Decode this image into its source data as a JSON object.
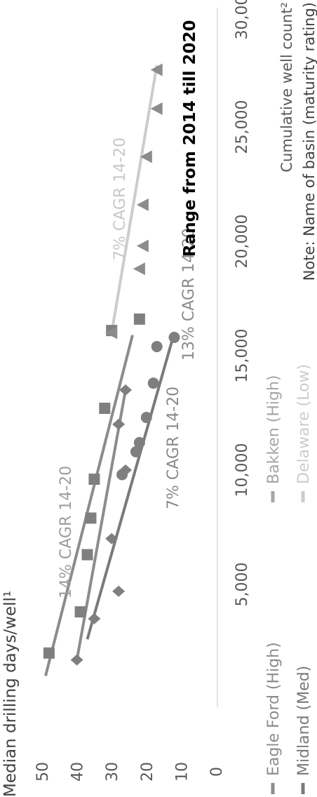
{
  "chart_data": {
    "type": "scatter",
    "title": "",
    "ylabel": "Median drilling days/well¹",
    "xlabel": "Cumulative well count²",
    "xlim": [
      0,
      30000
    ],
    "ylim": [
      0,
      50
    ],
    "x_ticks": [
      "5,000",
      "10,000",
      "15,000",
      "20,000",
      "25,000",
      "30,000"
    ],
    "x_tick_values": [
      5000,
      10000,
      15000,
      20000,
      25000,
      30000
    ],
    "y_ticks": [
      "0",
      "10",
      "20",
      "30",
      "40",
      "50"
    ],
    "y_tick_values": [
      0,
      10,
      20,
      30,
      40,
      50
    ],
    "orientation": "rotated 90° counter-clockwise",
    "legend": [
      {
        "label": "Eagle Ford (High)",
        "color": "#8c8c8c"
      },
      {
        "label": "Bakken (High)",
        "color": "#a6a6a6"
      },
      {
        "label": "Midland (Med)",
        "color": "#7a7a7a"
      },
      {
        "label": "Delaware (Low)",
        "color": "#cccccc"
      }
    ],
    "series": [
      {
        "marker": "square",
        "color": "#7f7f7f",
        "points": [
          [
            2000,
            48
          ],
          [
            3800,
            39
          ],
          [
            6300,
            37
          ],
          [
            7900,
            36
          ],
          [
            9600,
            35
          ],
          [
            12700,
            32
          ],
          [
            16100,
            30
          ],
          [
            16600,
            22
          ]
        ],
        "trend": [
          [
            1000,
            49
          ],
          [
            15900,
            24
          ]
        ]
      },
      {
        "marker": "diamond",
        "color": "#7f7f7f",
        "points": [
          [
            1700,
            40
          ],
          [
            3500,
            35
          ],
          [
            4700,
            28
          ],
          [
            7000,
            30
          ],
          [
            10000,
            26
          ],
          [
            12000,
            28
          ],
          [
            13500,
            26
          ]
        ],
        "trend": [
          [
            1700,
            40
          ],
          [
            13500,
            26
          ]
        ]
      },
      {
        "marker": "circle",
        "color": "#7f7f7f",
        "points": [
          [
            9800,
            27
          ],
          [
            10800,
            23
          ],
          [
            11200,
            22
          ],
          [
            12300,
            20
          ],
          [
            13800,
            18
          ],
          [
            15400,
            17
          ],
          [
            15800,
            12
          ]
        ],
        "trend": [
          [
            2600,
            37
          ],
          [
            16000,
            12
          ]
        ]
      },
      {
        "marker": "triangle",
        "color": "#8c8c8c",
        "points": [
          [
            16000,
            30
          ],
          [
            18800,
            22
          ],
          [
            19800,
            21
          ],
          [
            21600,
            21
          ],
          [
            23700,
            20
          ],
          [
            25800,
            17
          ],
          [
            27500,
            17
          ]
        ],
        "trend": [
          [
            16000,
            30
          ],
          [
            27700,
            17
          ]
        ]
      }
    ],
    "annotations": [
      {
        "text": "14% CAGR 14-20",
        "color": "#9e9e9e"
      },
      {
        "text": "7% CAGR 14-20",
        "color": "#8a8a8a"
      },
      {
        "text": "13% CAGR 14-20",
        "color": "#8a8a8a"
      },
      {
        "text": "7% CAGR 14-20",
        "color": "#c8c8c8"
      },
      {
        "text": "Range from 2014 till 2020",
        "color": "#000000"
      }
    ],
    "note": "Note: Name of basin (maturity rating)"
  }
}
